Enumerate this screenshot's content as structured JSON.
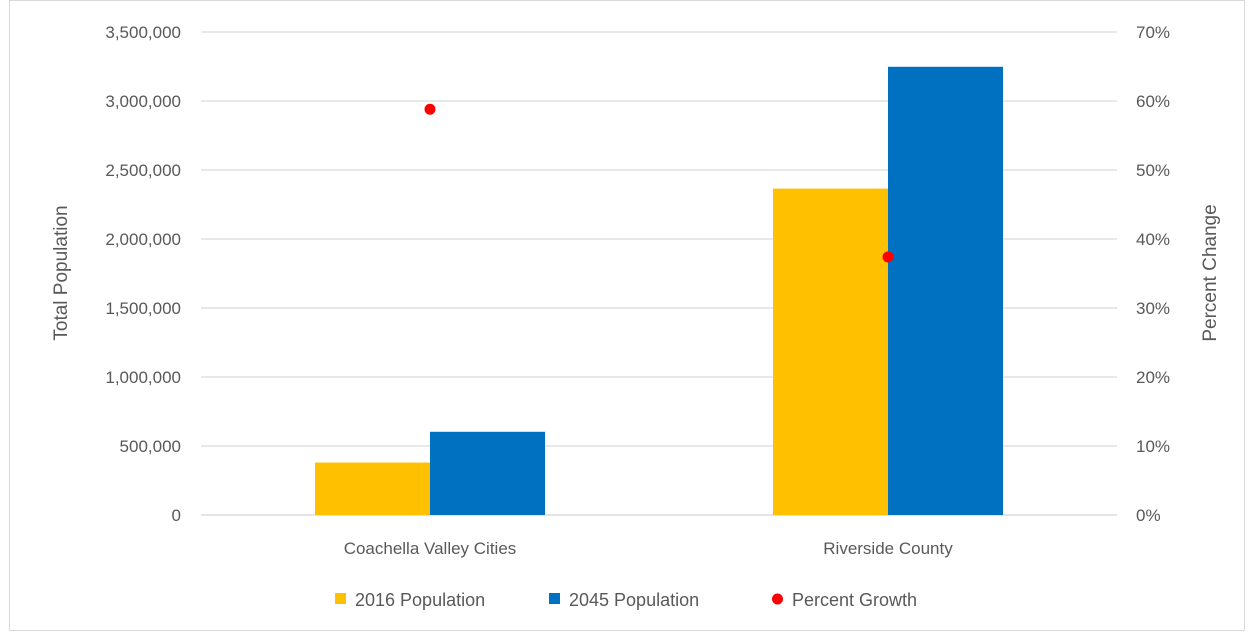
{
  "chart_data": {
    "type": "bar",
    "categories": [
      "Coachella Valley Cities",
      "Riverside County"
    ],
    "series": [
      {
        "name": "2016 Population",
        "kind": "bar",
        "axis": "left",
        "color": "#FFC000",
        "values": [
          380000,
          2365000
        ]
      },
      {
        "name": "2045 Population",
        "kind": "bar",
        "axis": "left",
        "color": "#0070C0",
        "values": [
          603000,
          3248000
        ]
      },
      {
        "name": "Percent Growth",
        "kind": "scatter",
        "axis": "right",
        "color": "#FF0000",
        "values": [
          0.588,
          0.374
        ]
      }
    ],
    "ylabel": "Total Population",
    "y2label": "Percent Change",
    "ylim": [
      0,
      3500000
    ],
    "y2lim": [
      0,
      0.7
    ],
    "yticks": [
      "0",
      "500,000",
      "1,000,000",
      "1,500,000",
      "2,000,000",
      "2,500,000",
      "3,000,000",
      "3,500,000"
    ],
    "y2ticks": [
      "0%",
      "10%",
      "20%",
      "30%",
      "40%",
      "50%",
      "60%",
      "70%"
    ],
    "grid": true,
    "legend_position": "bottom"
  }
}
